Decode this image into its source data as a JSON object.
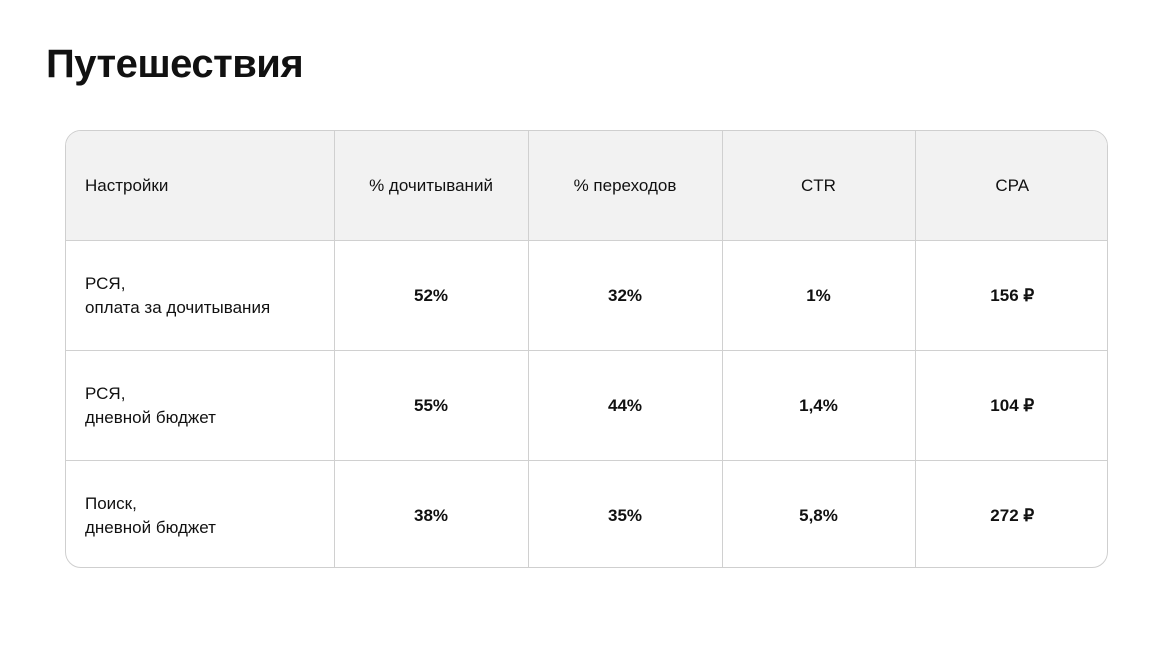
{
  "title": "Путешествия",
  "table": {
    "headers": [
      "Настройки",
      "% дочитываний",
      "% переходов",
      "CTR",
      "CPA"
    ],
    "rows": [
      {
        "setting_line1": "РСЯ,",
        "setting_line2": "оплата за дочитывания",
        "read_rate": "52%",
        "click_rate": "32%",
        "ctr": "1%",
        "cpa": "156 ₽"
      },
      {
        "setting_line1": "РСЯ,",
        "setting_line2": "дневной бюджет",
        "read_rate": "55%",
        "click_rate": "44%",
        "ctr": "1,4%",
        "cpa": "104 ₽"
      },
      {
        "setting_line1": "Поиск,",
        "setting_line2": "дневной бюджет",
        "read_rate": "38%",
        "click_rate": "35%",
        "ctr": "5,8%",
        "cpa": "272 ₽"
      }
    ]
  },
  "colors": {
    "header_bg": "#f2f2f2",
    "border": "#d0d0d0",
    "text": "#111111"
  }
}
